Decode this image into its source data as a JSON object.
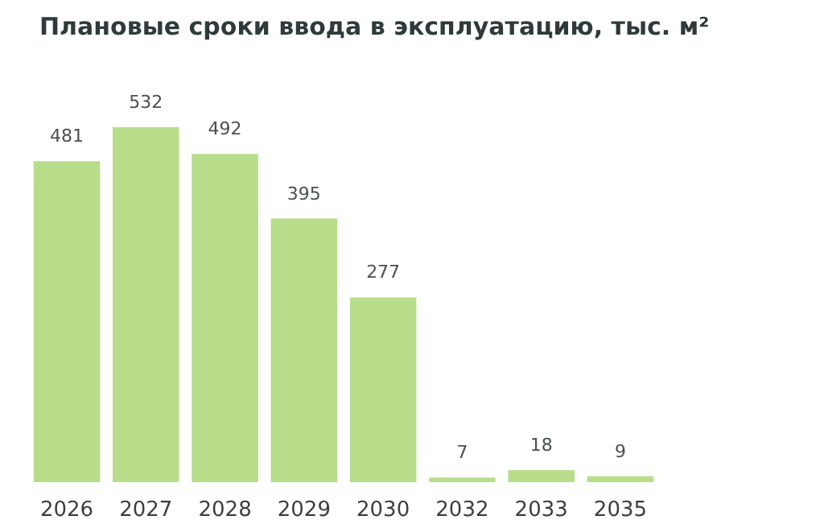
{
  "chart_data": {
    "type": "bar",
    "title": "Плановые сроки ввода в эксплуатацию, тыс. м²",
    "categories": [
      "2026",
      "2027",
      "2028",
      "2029",
      "2030",
      "2032",
      "2033",
      "2035"
    ],
    "values": [
      481,
      532,
      492,
      395,
      277,
      7,
      18,
      9
    ],
    "color": "#b7dd8a",
    "data_labels": true
  }
}
